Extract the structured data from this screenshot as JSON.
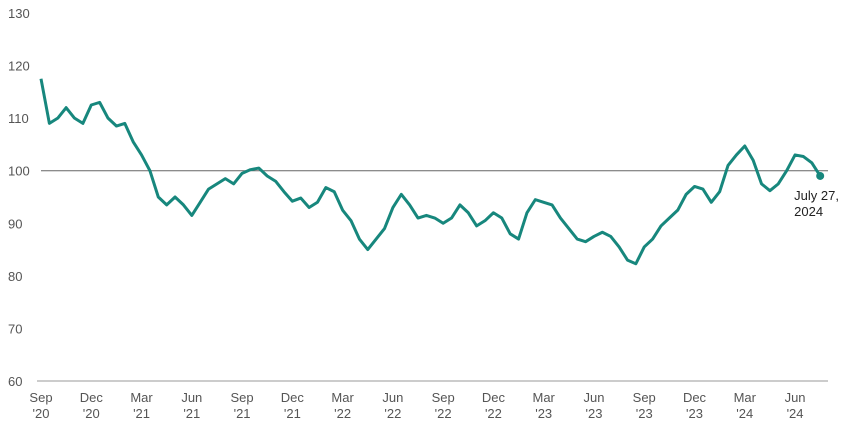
{
  "chart_data": {
    "type": "line",
    "categories": [
      "Sep '20",
      null,
      null,
      null,
      null,
      null,
      "Dec '20",
      null,
      null,
      null,
      null,
      null,
      "Mar '21",
      null,
      null,
      null,
      null,
      null,
      "Jun '21",
      null,
      null,
      null,
      null,
      null,
      "Sep '21",
      null,
      null,
      null,
      null,
      null,
      "Dec '21",
      null,
      null,
      null,
      null,
      null,
      "Mar '22",
      null,
      null,
      null,
      null,
      null,
      "Jun '22",
      null,
      null,
      null,
      null,
      null,
      "Sep '22",
      null,
      null,
      null,
      null,
      null,
      "Dec '22",
      null,
      null,
      null,
      null,
      null,
      "Mar '23",
      null,
      null,
      null,
      null,
      null,
      "Jun '23",
      null,
      null,
      null,
      null,
      null,
      "Sep '23",
      null,
      null,
      null,
      null,
      null,
      "Dec '23",
      null,
      null,
      null,
      null,
      null,
      "Mar '24",
      null,
      null,
      null,
      null,
      null,
      "Jun '24",
      null,
      null,
      null
    ],
    "series": [
      {
        "color": "#17877d",
        "values": [
          117.5,
          109,
          110,
          112,
          110,
          109,
          112.5,
          113,
          110,
          108.5,
          109,
          105.5,
          103,
          100,
          95,
          93.5,
          95,
          93.5,
          91.5,
          94,
          96.5,
          97.5,
          98.5,
          97.5,
          99.5,
          100.2,
          100.5,
          99,
          98,
          96,
          94.2,
          94.8,
          93,
          94,
          96.8,
          96,
          92.5,
          90.5,
          87,
          85,
          87,
          89,
          93,
          95.5,
          93.5,
          91,
          91.5,
          91,
          90,
          91,
          93.5,
          92,
          89.5,
          90.5,
          92,
          91,
          88,
          87,
          92,
          94.5,
          94,
          93.5,
          91,
          89,
          87,
          86.5,
          87.5,
          88.3,
          87.5,
          85.5,
          83,
          82.3,
          85.5,
          87,
          89.5,
          91,
          92.5,
          95.5,
          97,
          96.5,
          94,
          96,
          101,
          103,
          104.7,
          102,
          97.5,
          96.2,
          97.5,
          100,
          103,
          102.7,
          101.5,
          99
        ]
      }
    ],
    "annotation": "July 27, 2024",
    "reference_line": 100,
    "ylim": [
      60,
      130
    ],
    "yticks": [
      60,
      70,
      80,
      90,
      100,
      110,
      120,
      130
    ]
  }
}
